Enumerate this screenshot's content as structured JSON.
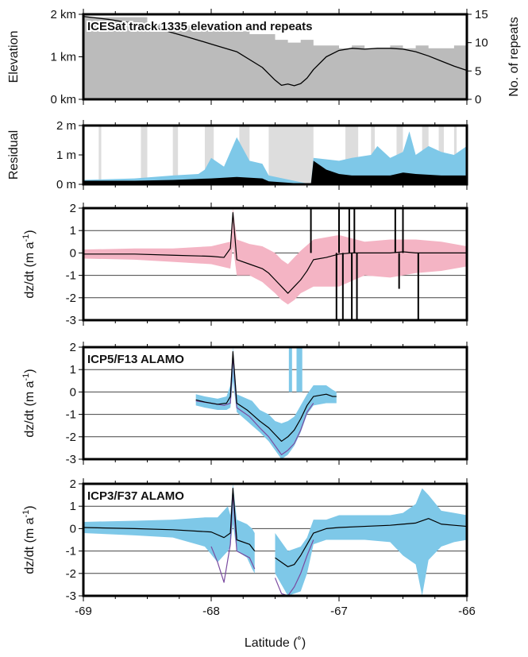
{
  "chart_data": [
    {
      "type": "area",
      "title": "ICESat track 1335 elevation and repeats",
      "ylabel": "Elevation",
      "y2label": "No. of repeats",
      "xlim": [
        -69,
        -66
      ],
      "ylim": [
        0,
        2
      ],
      "y2lim": [
        0,
        15
      ],
      "yticks": [
        {
          "v": 0,
          "label": "0 km"
        },
        {
          "v": 1,
          "label": "1 km"
        },
        {
          "v": 2,
          "label": "2 km"
        }
      ],
      "y2ticks": [
        {
          "v": 0,
          "label": "0"
        },
        {
          "v": 5,
          "label": "5"
        },
        {
          "v": 10,
          "label": "10"
        },
        {
          "v": 15,
          "label": "15"
        }
      ],
      "series": [
        {
          "kind": "repeats-fill",
          "color": "#bbbbbb",
          "x": [
            -69.0,
            -68.5,
            -68.3,
            -68.0,
            -67.7,
            -67.5,
            -67.4,
            -67.3,
            -67.2,
            -67.1,
            -67.0,
            -66.9,
            -66.8,
            -66.7,
            -66.6,
            -66.5,
            -66.4,
            -66.3,
            -66.2,
            -66.1,
            -66.0
          ],
          "y": [
            14.5,
            13.5,
            13.0,
            12.0,
            11.5,
            10.5,
            10.0,
            10.5,
            9.5,
            9.5,
            9.0,
            9.5,
            9.0,
            9.0,
            9.5,
            9.0,
            9.5,
            9.0,
            9.0,
            9.5,
            9.0
          ]
        },
        {
          "kind": "elevation-line",
          "color": "#000000",
          "x": [
            -69.0,
            -68.8,
            -68.6,
            -68.4,
            -68.2,
            -68.0,
            -67.8,
            -67.6,
            -67.5,
            -67.45,
            -67.4,
            -67.35,
            -67.3,
            -67.25,
            -67.2,
            -67.1,
            -67.0,
            -66.9,
            -66.8,
            -66.7,
            -66.6,
            -66.5,
            -66.4,
            -66.3,
            -66.2,
            -66.1,
            -66.0
          ],
          "y": [
            1.95,
            1.88,
            1.78,
            1.65,
            1.48,
            1.3,
            1.12,
            0.75,
            0.45,
            0.33,
            0.36,
            0.32,
            0.37,
            0.5,
            0.7,
            1.0,
            1.15,
            1.2,
            1.18,
            1.2,
            1.2,
            1.18,
            1.12,
            1.02,
            0.9,
            0.78,
            0.68
          ]
        }
      ]
    },
    {
      "type": "area",
      "ylabel": "Residual",
      "xlim": [
        -69,
        -66
      ],
      "ylim": [
        0,
        2
      ],
      "yticks": [
        {
          "v": 0,
          "label": "0 m"
        },
        {
          "v": 1,
          "label": "1 m"
        },
        {
          "v": 2,
          "label": "2 m"
        }
      ],
      "gray_bands": [
        [
          -68.88,
          -68.86
        ],
        [
          -68.55,
          -68.5
        ],
        [
          -68.3,
          -68.26
        ],
        [
          -68.05,
          -67.98
        ],
        [
          -67.78,
          -67.7
        ],
        [
          -67.55,
          -67.2
        ],
        [
          -66.95,
          -66.85
        ],
        [
          -66.75,
          -66.72
        ],
        [
          -66.55,
          -66.5
        ],
        [
          -66.35,
          -66.3
        ],
        [
          -66.22,
          -66.18
        ],
        [
          -66.1,
          -66.08
        ]
      ],
      "series": [
        {
          "kind": "blue-residual",
          "color": "#7ec8e8",
          "x": [
            -69.0,
            -68.6,
            -68.3,
            -68.1,
            -68.05,
            -68.0,
            -67.9,
            -67.85,
            -67.8,
            -67.7,
            -67.6,
            -67.55,
            -67.22,
            -67.2,
            -67.0,
            -66.9,
            -66.75,
            -66.7,
            -66.6,
            -66.5,
            -66.45,
            -66.4,
            -66.3,
            -66.2,
            -66.1,
            -66.0
          ],
          "y": [
            0.15,
            0.2,
            0.3,
            0.35,
            0.5,
            0.9,
            0.6,
            1.1,
            1.6,
            0.8,
            0.7,
            0.3,
            0.0,
            0.9,
            0.8,
            0.9,
            1.0,
            1.3,
            0.9,
            1.1,
            1.8,
            1.0,
            1.3,
            1.1,
            1.0,
            1.3
          ]
        },
        {
          "kind": "black-residual",
          "color": "#000000",
          "x": [
            -69.0,
            -68.6,
            -68.3,
            -68.0,
            -67.8,
            -67.6,
            -67.55,
            -67.22,
            -67.2,
            -67.1,
            -67.0,
            -66.9,
            -66.8,
            -66.6,
            -66.5,
            -66.4,
            -66.2,
            -66.0
          ],
          "y": [
            0.12,
            0.12,
            0.15,
            0.2,
            0.25,
            0.2,
            0.1,
            0.0,
            0.8,
            0.5,
            0.35,
            0.3,
            0.3,
            0.3,
            0.4,
            0.35,
            0.3,
            0.3
          ]
        }
      ]
    },
    {
      "type": "line",
      "ylabel": "dz/dt (m a",
      "ylabel_sup": "-1",
      "ylabel_end": ")",
      "xlim": [
        -69,
        -66
      ],
      "ylim": [
        -3,
        2
      ],
      "yticks": [
        {
          "v": -3,
          "label": "-3"
        },
        {
          "v": -2,
          "label": "-2"
        },
        {
          "v": -1,
          "label": "-1"
        },
        {
          "v": 0,
          "label": "0"
        },
        {
          "v": 1,
          "label": "1"
        },
        {
          "v": 2,
          "label": "2"
        }
      ],
      "series": [
        {
          "kind": "pink-band",
          "color": "#f4b4c4",
          "x": [
            -69.0,
            -68.6,
            -68.3,
            -68.0,
            -67.85,
            -67.83,
            -67.8,
            -67.7,
            -67.6,
            -67.5,
            -67.45,
            -67.4,
            -67.35,
            -67.3,
            -67.2,
            -67.0,
            -66.8,
            -66.6,
            -66.4,
            -66.2,
            -66.0
          ],
          "hi": [
            0.15,
            0.2,
            0.2,
            0.3,
            0.5,
            2.0,
            0.6,
            0.4,
            0.3,
            0.0,
            -0.3,
            -0.5,
            -0.2,
            0.1,
            0.6,
            0.8,
            0.5,
            0.6,
            0.6,
            0.5,
            0.3
          ],
          "lo": [
            -0.25,
            -0.3,
            -0.4,
            -0.5,
            -0.7,
            0.3,
            -1.0,
            -1.0,
            -1.3,
            -1.8,
            -2.1,
            -2.3,
            -2.1,
            -1.8,
            -1.5,
            -1.5,
            -1.0,
            -1.1,
            -0.9,
            -0.8,
            -0.6
          ]
        },
        {
          "kind": "black-line",
          "color": "#000000",
          "x": [
            -69.0,
            -68.6,
            -68.3,
            -68.0,
            -67.9,
            -67.85,
            -67.83,
            -67.8,
            -67.7,
            -67.6,
            -67.55,
            -67.5,
            -67.45,
            -67.4,
            -67.35,
            -67.3,
            -67.25,
            -67.2,
            -67.1,
            -67.0,
            -66.9,
            -66.8,
            -66.7,
            -66.6,
            -66.5,
            -66.4,
            -66.3,
            -66.2,
            -66.1,
            -66.0
          ],
          "y": [
            -0.05,
            -0.05,
            -0.1,
            -0.15,
            -0.2,
            0.2,
            1.8,
            -0.3,
            -0.5,
            -0.7,
            -0.9,
            -1.2,
            -1.5,
            -1.8,
            -1.5,
            -1.2,
            -0.8,
            -0.3,
            -0.2,
            -0.05,
            0.0,
            0.0,
            0.0,
            0.0,
            0.05,
            0.0,
            0.0,
            0.0,
            0.0,
            0.0
          ]
        },
        {
          "kind": "black-spikes",
          "color": "#000000",
          "x": [
            -67.22,
            -67.02,
            -67.0,
            -66.97,
            -66.92,
            -66.9,
            -66.88,
            -66.86,
            -66.56,
            -66.53,
            -66.5,
            -66.38
          ],
          "y": [
            2.0,
            -3.0,
            2.0,
            -3.0,
            2.0,
            -3.0,
            2.0,
            -3.0,
            2.0,
            -1.6,
            2.0,
            -3.0
          ]
        }
      ]
    },
    {
      "type": "line",
      "title": "ICP5/F13 ALAMO",
      "ylabel": "dz/dt (m a",
      "ylabel_sup": "-1",
      "ylabel_end": ")",
      "xlim": [
        -69,
        -66
      ],
      "ylim": [
        -3,
        2
      ],
      "yticks": [
        {
          "v": -3,
          "label": "-3"
        },
        {
          "v": -2,
          "label": "-2"
        },
        {
          "v": -1,
          "label": "-1"
        },
        {
          "v": 0,
          "label": "0"
        },
        {
          "v": 1,
          "label": "1"
        },
        {
          "v": 2,
          "label": "2"
        }
      ],
      "series": [
        {
          "kind": "blue-band",
          "color": "#7ec8e8",
          "x": [
            -68.12,
            -68.05,
            -67.95,
            -67.88,
            -67.85,
            -67.83,
            -67.8,
            -67.72,
            -67.68,
            -67.62,
            -67.55,
            -67.5,
            -67.45,
            -67.4,
            -67.35,
            -67.3,
            -67.25,
            -67.2,
            -67.1,
            -67.05,
            -67.02
          ],
          "hi": [
            -0.1,
            -0.2,
            -0.3,
            -0.2,
            0.3,
            2.0,
            -0.1,
            -0.3,
            -0.4,
            -0.8,
            -1.0,
            -1.3,
            -1.4,
            -1.3,
            -1.1,
            -0.6,
            -0.1,
            0.3,
            0.3,
            0.1,
            0.0
          ],
          "lo": [
            -0.6,
            -0.7,
            -0.8,
            -0.8,
            -0.7,
            0.5,
            -0.9,
            -1.3,
            -1.5,
            -1.8,
            -2.2,
            -2.6,
            -3.0,
            -2.8,
            -2.4,
            -1.8,
            -1.0,
            -0.6,
            -0.5,
            -0.5,
            -0.5
          ]
        },
        {
          "kind": "purple-line",
          "color": "#7a4aa0",
          "x": [
            -68.12,
            -68.0,
            -67.9,
            -67.85,
            -67.83,
            -67.8,
            -67.7,
            -67.62,
            -67.55,
            -67.5,
            -67.45,
            -67.4,
            -67.35,
            -67.3,
            -67.25,
            -67.2
          ],
          "y": [
            -0.4,
            -0.5,
            -0.6,
            -0.5,
            1.6,
            -0.7,
            -1.1,
            -1.6,
            -2.0,
            -2.4,
            -2.8,
            -2.6,
            -2.3,
            -1.7,
            -0.9,
            -0.5
          ]
        },
        {
          "kind": "black-line",
          "color": "#000000",
          "x": [
            -68.12,
            -68.05,
            -67.95,
            -67.88,
            -67.85,
            -67.83,
            -67.8,
            -67.72,
            -67.68,
            -67.62,
            -67.55,
            -67.5,
            -67.45,
            -67.4,
            -67.35,
            -67.3,
            -67.25,
            -67.2,
            -67.1,
            -67.05,
            -67.02
          ],
          "y": [
            -0.35,
            -0.45,
            -0.55,
            -0.5,
            -0.2,
            1.8,
            -0.5,
            -0.8,
            -1.0,
            -1.3,
            -1.6,
            -1.9,
            -2.2,
            -2.0,
            -1.7,
            -1.2,
            -0.6,
            -0.2,
            -0.1,
            -0.2,
            -0.2
          ]
        },
        {
          "kind": "blue-spikes",
          "color": "#7ec8e8",
          "x": [
            -67.38,
            -67.32,
            -67.3
          ],
          "y": [
            2.0,
            2.0,
            2.0
          ]
        }
      ]
    },
    {
      "type": "line",
      "title": "ICP3/F37 ALAMO",
      "xlabel": "Latitude (˚)",
      "ylabel": "dz/dt (m a",
      "ylabel_sup": "-1",
      "ylabel_end": ")",
      "xlim": [
        -69,
        -66
      ],
      "ylim": [
        -3,
        2
      ],
      "xticks": [
        {
          "v": -69,
          "label": "-69"
        },
        {
          "v": -68,
          "label": "-68"
        },
        {
          "v": -67,
          "label": "-67"
        },
        {
          "v": -66,
          "label": "-66"
        }
      ],
      "yticks": [
        {
          "v": -3,
          "label": "-3"
        },
        {
          "v": -2,
          "label": "-2"
        },
        {
          "v": -1,
          "label": "-1"
        },
        {
          "v": 0,
          "label": "0"
        },
        {
          "v": 1,
          "label": "1"
        },
        {
          "v": 2,
          "label": "2"
        }
      ],
      "series": [
        {
          "kind": "blue-band",
          "color": "#7ec8e8",
          "x": [
            -69.0,
            -68.6,
            -68.3,
            -68.05,
            -67.95,
            -67.87,
            -67.85,
            -67.83,
            -67.8,
            -67.72,
            -67.68,
            -67.66,
            -67.66,
            -67.5,
            -67.5,
            -67.4,
            -67.3,
            -67.25,
            -67.2,
            -67.1,
            -67.0,
            -66.8,
            -66.6,
            -66.5,
            -66.4,
            -66.35,
            -66.3,
            -66.2,
            -66.1,
            -66.0
          ],
          "hi": [
            0.3,
            0.35,
            0.4,
            0.5,
            0.5,
            1.0,
            0.6,
            2.0,
            0.4,
            0.2,
            0.0,
            -0.2,
            null,
            -0.4,
            -0.2,
            -1.0,
            -0.8,
            -0.4,
            0.4,
            0.4,
            0.6,
            0.6,
            0.6,
            0.7,
            1.1,
            1.8,
            1.5,
            0.8,
            0.7,
            0.6
          ],
          "lo": [
            -0.2,
            -0.3,
            -0.4,
            -0.8,
            -1.5,
            -1.0,
            -0.8,
            0.2,
            -1.0,
            -1.3,
            -1.8,
            -2.0,
            null,
            -2.2,
            -2.0,
            -3.0,
            -2.8,
            -2.0,
            -0.7,
            -0.5,
            -0.5,
            -0.5,
            -0.6,
            -1.2,
            -1.6,
            -3.0,
            -1.4,
            -0.8,
            -0.6,
            -0.5
          ]
        },
        {
          "kind": "purple-line",
          "color": "#7a4aa0",
          "x": [
            -68.0,
            -67.95,
            -67.9,
            -67.85,
            -67.83,
            -67.8,
            -67.7,
            -67.66,
            null,
            -67.5,
            -67.45,
            -67.4,
            -67.35,
            -67.3,
            -67.25,
            -67.2
          ],
          "y": [
            -0.8,
            -1.5,
            -2.4,
            -0.7,
            1.6,
            -1.0,
            -1.3,
            -1.8,
            null,
            -2.2,
            -2.9,
            -3.0,
            -2.6,
            -2.0,
            -1.2,
            -0.5
          ]
        },
        {
          "kind": "black-line",
          "color": "#000000",
          "x": [
            -69.0,
            -68.6,
            -68.3,
            -68.0,
            -67.9,
            -67.85,
            -67.83,
            -67.8,
            -67.7,
            -67.66,
            null,
            -67.5,
            -67.45,
            -67.4,
            -67.35,
            -67.3,
            -67.25,
            -67.2,
            -67.1,
            -67.0,
            -66.8,
            -66.6,
            -66.5,
            -66.4,
            -66.3,
            -66.2,
            -66.1,
            -66.0
          ],
          "y": [
            0.05,
            0.0,
            -0.05,
            -0.15,
            -0.4,
            -0.2,
            1.8,
            -0.5,
            -0.7,
            -1.0,
            null,
            -1.3,
            -1.5,
            -1.7,
            -1.6,
            -1.2,
            -0.7,
            -0.2,
            0.0,
            0.05,
            0.1,
            0.15,
            0.2,
            0.25,
            0.45,
            0.2,
            0.15,
            0.1
          ]
        }
      ]
    }
  ]
}
